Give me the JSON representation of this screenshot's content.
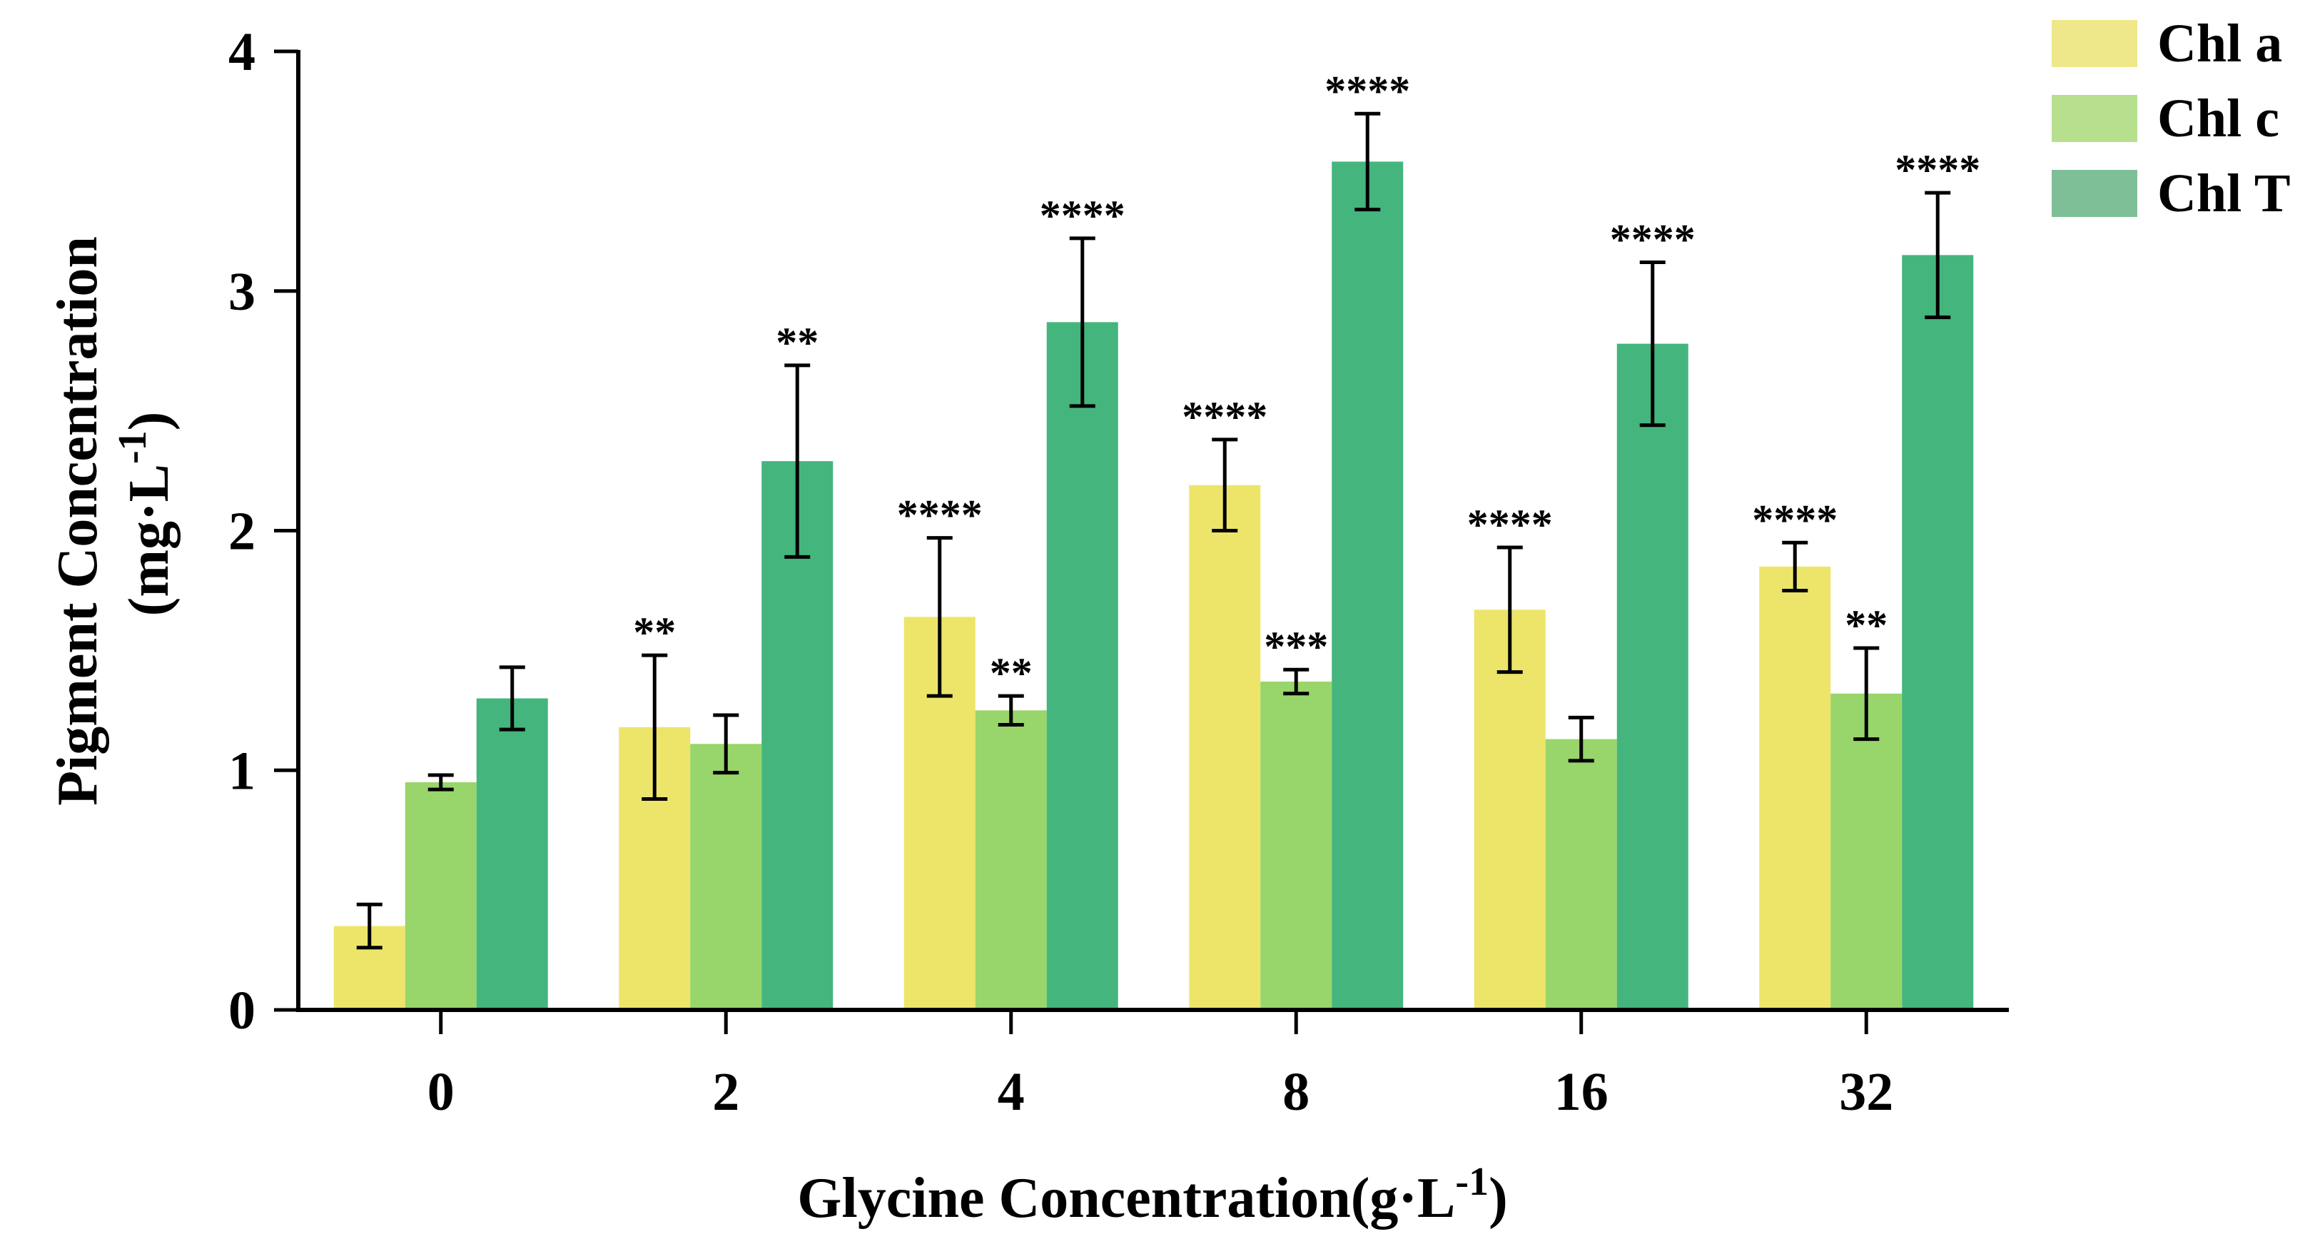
{
  "chart_data": {
    "type": "bar",
    "title": "",
    "xlabel": "Glycine Concentration(g·L",
    "xlabel_sup": "-1",
    "xlabel_suffix": ")",
    "ylabel_line1": "Pigment Concentration",
    "ylabel_line2": "(mg·L",
    "ylabel_line2_sup": "-1",
    "ylabel_line2_suffix": ")",
    "ylim": [
      0,
      4
    ],
    "yticks": [
      0,
      1,
      2,
      3,
      4
    ],
    "ytick_labels": [
      "0",
      "1",
      "2",
      "3",
      "4"
    ],
    "categories": [
      "0",
      "2",
      "4",
      "8",
      "16",
      "32"
    ],
    "legend_position": "top-right",
    "series": [
      {
        "name": "Chl a",
        "color": "#ece56a",
        "legend_color": "#efe88a",
        "values": [
          0.35,
          1.18,
          1.64,
          2.19,
          1.67,
          1.85
        ],
        "errors": [
          0.09,
          0.3,
          0.33,
          0.19,
          0.26,
          0.1
        ],
        "significance": [
          "",
          "**",
          "****",
          "****",
          "****",
          "****"
        ]
      },
      {
        "name": "Chl c",
        "color": "#98d56a",
        "legend_color": "#b6e08e",
        "values": [
          0.95,
          1.11,
          1.25,
          1.37,
          1.13,
          1.32
        ],
        "errors": [
          0.03,
          0.12,
          0.06,
          0.05,
          0.09,
          0.19
        ],
        "significance": [
          "",
          "",
          "**",
          "***",
          "",
          "**"
        ]
      },
      {
        "name": "Chl T",
        "color": "#44b57d",
        "legend_color": "#7fbf98",
        "values": [
          1.3,
          2.29,
          2.87,
          3.54,
          2.78,
          3.15
        ],
        "errors": [
          0.13,
          0.4,
          0.35,
          0.2,
          0.34,
          0.26
        ],
        "significance": [
          "",
          "**",
          "****",
          "****",
          "****",
          "****"
        ]
      }
    ]
  }
}
